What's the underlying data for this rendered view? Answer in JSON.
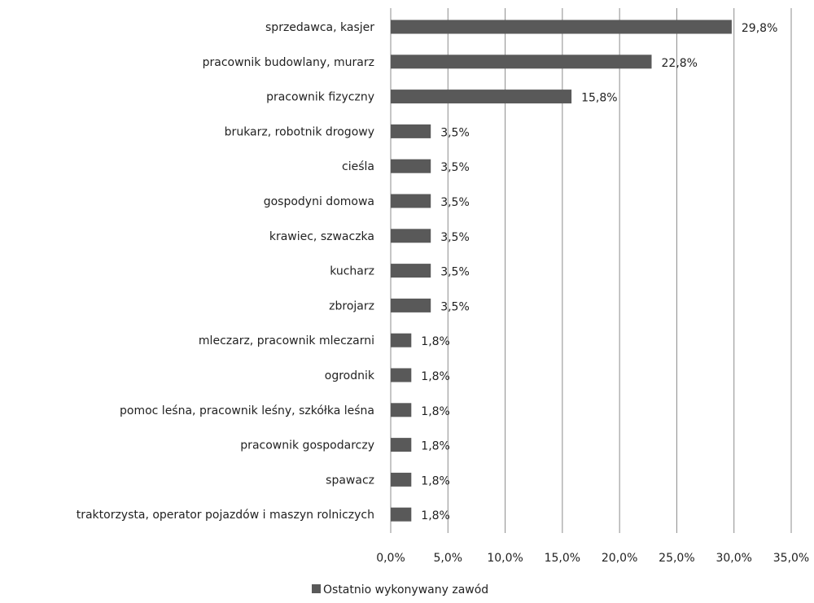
{
  "chart_data": {
    "type": "bar",
    "orientation": "horizontal",
    "categories": [
      "sprzedawca, kasjer",
      "pracownik budowlany,  murarz",
      "pracownik fizyczny",
      "brukarz, robotnik drogowy",
      "cieśla",
      "gospodyni domowa",
      "krawiec, szwaczka",
      "kucharz",
      "zbrojarz",
      "mleczarz, pracownik mleczarni",
      "ogrodnik",
      "pomoc leśna, pracownik leśny, szkółka leśna",
      "pracownik gospodarczy",
      "spawacz",
      "traktorzysta, operator pojazdów  i maszyn  rolniczych"
    ],
    "series": [
      {
        "name": "Ostatnio wykonywany  zawód",
        "values": [
          29.8,
          22.8,
          15.8,
          3.5,
          3.5,
          3.5,
          3.5,
          3.5,
          3.5,
          1.8,
          1.8,
          1.8,
          1.8,
          1.8,
          1.8
        ],
        "labels": [
          "29,8%",
          "22,8%",
          "15,8%",
          "3,5%",
          "3,5%",
          "3,5%",
          "3,5%",
          "3,5%",
          "3,5%",
          "1,8%",
          "1,8%",
          "1,8%",
          "1,8%",
          "1,8%",
          "1,8%"
        ],
        "color": "#595959"
      }
    ],
    "xlim": [
      0,
      35
    ],
    "x_ticks": [
      "0,0%",
      "5,0%",
      "10,0%",
      "15,0%",
      "20,0%",
      "25,0%",
      "30,0%",
      "35,0%"
    ],
    "grid": true,
    "grid_color": "#8c8c8c",
    "legend_position": "bottom-center",
    "title": "",
    "xlabel": "",
    "ylabel": ""
  }
}
